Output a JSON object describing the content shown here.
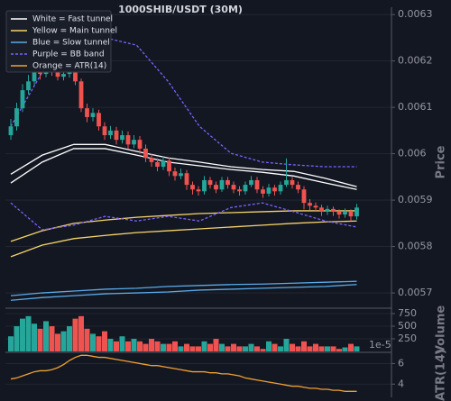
{
  "chart_data": {
    "type": "candlestick",
    "title": "1000SHIB/USDT (30M)",
    "y_label": "Price",
    "up_color": "#26a69a",
    "down_color": "#ef5350",
    "grid": true,
    "ylim": [
      0.005669,
      0.006312
    ],
    "yticks": [
      0.0057,
      0.0058,
      0.0059,
      0.006,
      0.0061,
      0.0062,
      0.0063
    ],
    "open": [
      0.00604,
      0.006059,
      0.006098,
      0.006137,
      0.006156,
      0.006176,
      0.006172,
      0.00618,
      0.006176,
      0.006166,
      0.006172,
      0.006176,
      0.006156,
      0.006098,
      0.006079,
      0.006088,
      0.006059,
      0.00604,
      0.00605,
      0.00603,
      0.00604,
      0.00602,
      0.00603,
      0.006011,
      0.005991,
      0.005982,
      0.005972,
      0.005985,
      0.005962,
      0.005952,
      0.005958,
      0.005933,
      0.005923,
      0.005919,
      0.005943,
      0.005933,
      0.005923,
      0.005943,
      0.005933,
      0.005923,
      0.005919,
      0.005933,
      0.005943,
      0.005923,
      0.005914,
      0.005927,
      0.005919,
      0.005933,
      0.005943,
      0.005933,
      0.005923,
      0.005894,
      0.005888,
      0.005884,
      0.005875,
      0.005881,
      0.005875,
      0.005869,
      0.005875,
      0.005865
    ],
    "high": [
      0.006075,
      0.00611,
      0.00615,
      0.00617,
      0.00619,
      0.006186,
      0.006195,
      0.00619,
      0.006184,
      0.006182,
      0.006188,
      0.006185,
      0.006162,
      0.006108,
      0.006098,
      0.006095,
      0.006068,
      0.00606,
      0.006058,
      0.00605,
      0.006048,
      0.00604,
      0.006038,
      0.00602,
      0.006,
      0.00599,
      0.005995,
      0.005992,
      0.00597,
      0.005968,
      0.005965,
      0.00594,
      0.00593,
      0.005952,
      0.00595,
      0.00594,
      0.00595,
      0.00595,
      0.00594,
      0.00593,
      0.00594,
      0.005952,
      0.00595,
      0.00593,
      0.005935,
      0.005933,
      0.00594,
      0.00599,
      0.00595,
      0.00594,
      0.00593,
      0.005902,
      0.005895,
      0.00589,
      0.005888,
      0.005886,
      0.00588,
      0.005882,
      0.00588,
      0.005892
    ],
    "low": [
      0.00603,
      0.00605,
      0.00609,
      0.006128,
      0.006148,
      0.00616,
      0.006165,
      0.006168,
      0.006158,
      0.006158,
      0.006164,
      0.006148,
      0.00609,
      0.006068,
      0.00607,
      0.00605,
      0.00603,
      0.006032,
      0.00602,
      0.006022,
      0.00601,
      0.006012,
      0.006,
      0.005982,
      0.005972,
      0.005962,
      0.005965,
      0.005952,
      0.005942,
      0.005945,
      0.005922,
      0.005912,
      0.00591,
      0.005912,
      0.005925,
      0.005915,
      0.005918,
      0.005925,
      0.005915,
      0.00591,
      0.005912,
      0.005928,
      0.005915,
      0.005905,
      0.005908,
      0.00591,
      0.005912,
      0.005928,
      0.005925,
      0.005915,
      0.00588,
      0.005878,
      0.005875,
      0.005866,
      0.005868,
      0.005866,
      0.00586,
      0.005862,
      0.005855,
      0.005858
    ],
    "close": [
      0.006059,
      0.006098,
      0.006137,
      0.006156,
      0.006176,
      0.006172,
      0.00618,
      0.006176,
      0.006166,
      0.006172,
      0.006176,
      0.006156,
      0.006098,
      0.006079,
      0.006088,
      0.006059,
      0.00604,
      0.00605,
      0.00603,
      0.00604,
      0.00602,
      0.00603,
      0.006011,
      0.005991,
      0.005982,
      0.005972,
      0.005985,
      0.005962,
      0.005952,
      0.005958,
      0.005933,
      0.005923,
      0.005919,
      0.005943,
      0.005933,
      0.005923,
      0.005943,
      0.005933,
      0.005923,
      0.005919,
      0.005933,
      0.005943,
      0.005923,
      0.005914,
      0.005927,
      0.005919,
      0.005933,
      0.005943,
      0.005933,
      0.005923,
      0.005894,
      0.005888,
      0.005884,
      0.005875,
      0.005881,
      0.005875,
      0.005869,
      0.005875,
      0.005865,
      0.005884
    ],
    "overlays": [
      {
        "name": "White = Fast tunnel",
        "color": "#ffffff",
        "dashed": false,
        "upper": [
          0.005956,
          0.005997,
          0.00602,
          0.00602,
          0.006005,
          0.005991,
          0.005982,
          0.005972,
          0.005966,
          0.005962,
          0.005947,
          0.005929
        ],
        "lower": [
          0.005937,
          0.005982,
          0.006011,
          0.006011,
          0.005997,
          0.005982,
          0.005974,
          0.005966,
          0.00596,
          0.005952,
          0.005937,
          0.005923
        ]
      },
      {
        "name": "Yellow = Main tunnel",
        "color": "#f5d36b",
        "dashed": false,
        "upper": [
          0.005811,
          0.005834,
          0.00585,
          0.005857,
          0.005863,
          0.005867,
          0.005871,
          0.005873,
          0.005875,
          0.005877,
          0.005877,
          0.005877
        ],
        "lower": [
          0.005778,
          0.005803,
          0.005817,
          0.005824,
          0.00583,
          0.005834,
          0.005838,
          0.005842,
          0.005846,
          0.00585,
          0.005853,
          0.005855
        ]
      },
      {
        "name": "Blue = Slow tunnel",
        "color": "#5aa9e6",
        "dashed": false,
        "upper": [
          0.005694,
          0.0057,
          0.005704,
          0.005708,
          0.00571,
          0.005714,
          0.005716,
          0.005718,
          0.005719,
          0.005721,
          0.005723,
          0.005725
        ],
        "lower": [
          0.005684,
          0.00569,
          0.005694,
          0.005698,
          0.0057,
          0.005702,
          0.005706,
          0.005708,
          0.00571,
          0.005712,
          0.005714,
          0.005718
        ]
      },
      {
        "name": "Purple = BB band",
        "color": "#7b61ff",
        "dashed": true,
        "upper": [
          0.006059,
          0.006176,
          0.006244,
          0.00625,
          0.006234,
          0.006156,
          0.006059,
          0.006001,
          0.005982,
          0.005976,
          0.005972,
          0.005972
        ],
        "lower": [
          0.005894,
          0.005836,
          0.005846,
          0.005865,
          0.005855,
          0.005865,
          0.005855,
          0.005884,
          0.005894,
          0.005875,
          0.005855,
          0.005842
        ]
      }
    ],
    "volume": {
      "label": "Volume",
      "offset_label": "1e-5",
      "ylim": [
        0,
        840
      ],
      "yticks": [
        250,
        500,
        750
      ],
      "values": [
        300,
        500,
        650,
        700,
        550,
        450,
        600,
        500,
        350,
        400,
        500,
        650,
        700,
        450,
        350,
        300,
        400,
        250,
        200,
        300,
        200,
        250,
        200,
        150,
        250,
        200,
        150,
        150,
        200,
        100,
        150,
        100,
        100,
        200,
        150,
        250,
        150,
        100,
        150,
        100,
        100,
        150,
        100,
        50,
        200,
        150,
        100,
        250,
        150,
        100,
        200,
        100,
        150,
        100,
        100,
        100,
        50,
        80,
        150,
        100
      ]
    },
    "atr": {
      "name": "Orange = ATR(14)",
      "label": "ATR(14)",
      "color": "#f0a030",
      "ylim": [
        2.8,
        7.0
      ],
      "yticks": [
        4,
        6
      ],
      "values": [
        4.5,
        4.6,
        4.8,
        5.0,
        5.2,
        5.3,
        5.3,
        5.4,
        5.6,
        5.9,
        6.3,
        6.6,
        6.8,
        6.8,
        6.7,
        6.6,
        6.6,
        6.5,
        6.4,
        6.3,
        6.2,
        6.1,
        6.0,
        5.9,
        5.8,
        5.8,
        5.7,
        5.6,
        5.5,
        5.4,
        5.3,
        5.2,
        5.2,
        5.2,
        5.1,
        5.1,
        5.0,
        5.0,
        4.9,
        4.8,
        4.6,
        4.5,
        4.4,
        4.3,
        4.2,
        4.1,
        4.0,
        3.9,
        3.8,
        3.8,
        3.7,
        3.6,
        3.6,
        3.5,
        3.5,
        3.4,
        3.4,
        3.3,
        3.3,
        3.3
      ]
    }
  }
}
